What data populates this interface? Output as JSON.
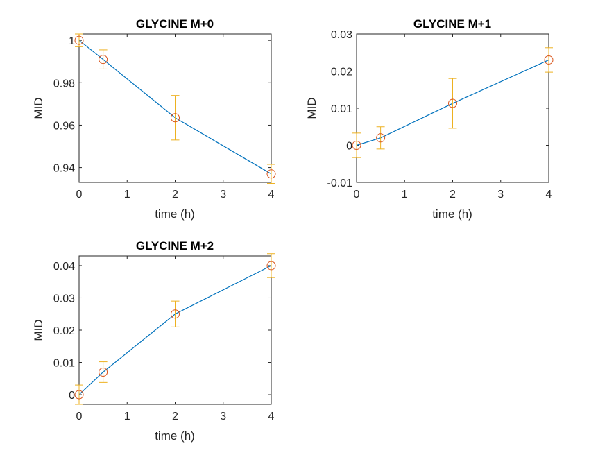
{
  "figure": {
    "background": "#ffffff"
  },
  "colors": {
    "line": "#0072BD",
    "marker": "#D95319",
    "errorbar": "#EDB120",
    "axis": "#262626"
  },
  "chart_data": [
    {
      "type": "line",
      "title": "GLYCINE M+0",
      "xlabel": "time (h)",
      "ylabel": "MID",
      "xlim": [
        0,
        4
      ],
      "ylim": [
        0.933,
        1.003
      ],
      "xticks": [
        0,
        1,
        2,
        3,
        4
      ],
      "xtick_labels": [
        "0",
        "1",
        "2",
        "3",
        "4"
      ],
      "yticks": [
        0.94,
        0.96,
        0.98,
        1.0
      ],
      "ytick_labels": [
        "0.94",
        "0.96",
        "0.98",
        "1"
      ],
      "x": [
        0,
        0.5,
        2,
        4
      ],
      "y": [
        1.0,
        0.991,
        0.9635,
        0.937
      ],
      "err": [
        0.003,
        0.0045,
        0.0105,
        0.0045
      ],
      "marker": "o",
      "grid": false
    },
    {
      "type": "line",
      "title": "GLYCINE M+1",
      "xlabel": "time (h)",
      "ylabel": "MID",
      "xlim": [
        0,
        4
      ],
      "ylim": [
        -0.01,
        0.03
      ],
      "xticks": [
        0,
        1,
        2,
        3,
        4
      ],
      "xtick_labels": [
        "0",
        "1",
        "2",
        "3",
        "4"
      ],
      "yticks": [
        -0.01,
        0,
        0.01,
        0.02,
        0.03
      ],
      "ytick_labels": [
        "-0.01",
        "0",
        "0.01",
        "0.02",
        "0.03"
      ],
      "x": [
        0,
        0.5,
        2,
        4
      ],
      "y": [
        0.0,
        0.002,
        0.0113,
        0.023
      ],
      "err": [
        0.0033,
        0.003,
        0.0067,
        0.0033
      ],
      "marker": "o",
      "grid": false
    },
    {
      "type": "line",
      "title": "GLYCINE M+2",
      "xlabel": "time (h)",
      "ylabel": "MID",
      "xlim": [
        0,
        4
      ],
      "ylim": [
        -0.003,
        0.043
      ],
      "xticks": [
        0,
        1,
        2,
        3,
        4
      ],
      "xtick_labels": [
        "0",
        "1",
        "2",
        "3",
        "4"
      ],
      "yticks": [
        0,
        0.01,
        0.02,
        0.03,
        0.04
      ],
      "ytick_labels": [
        "0",
        "0.01",
        "0.02",
        "0.03",
        "0.04"
      ],
      "x": [
        0,
        0.5,
        2,
        4
      ],
      "y": [
        0.0,
        0.007,
        0.025,
        0.04
      ],
      "err": [
        0.003,
        0.0032,
        0.004,
        0.0037
      ],
      "marker": "o",
      "grid": false
    }
  ]
}
